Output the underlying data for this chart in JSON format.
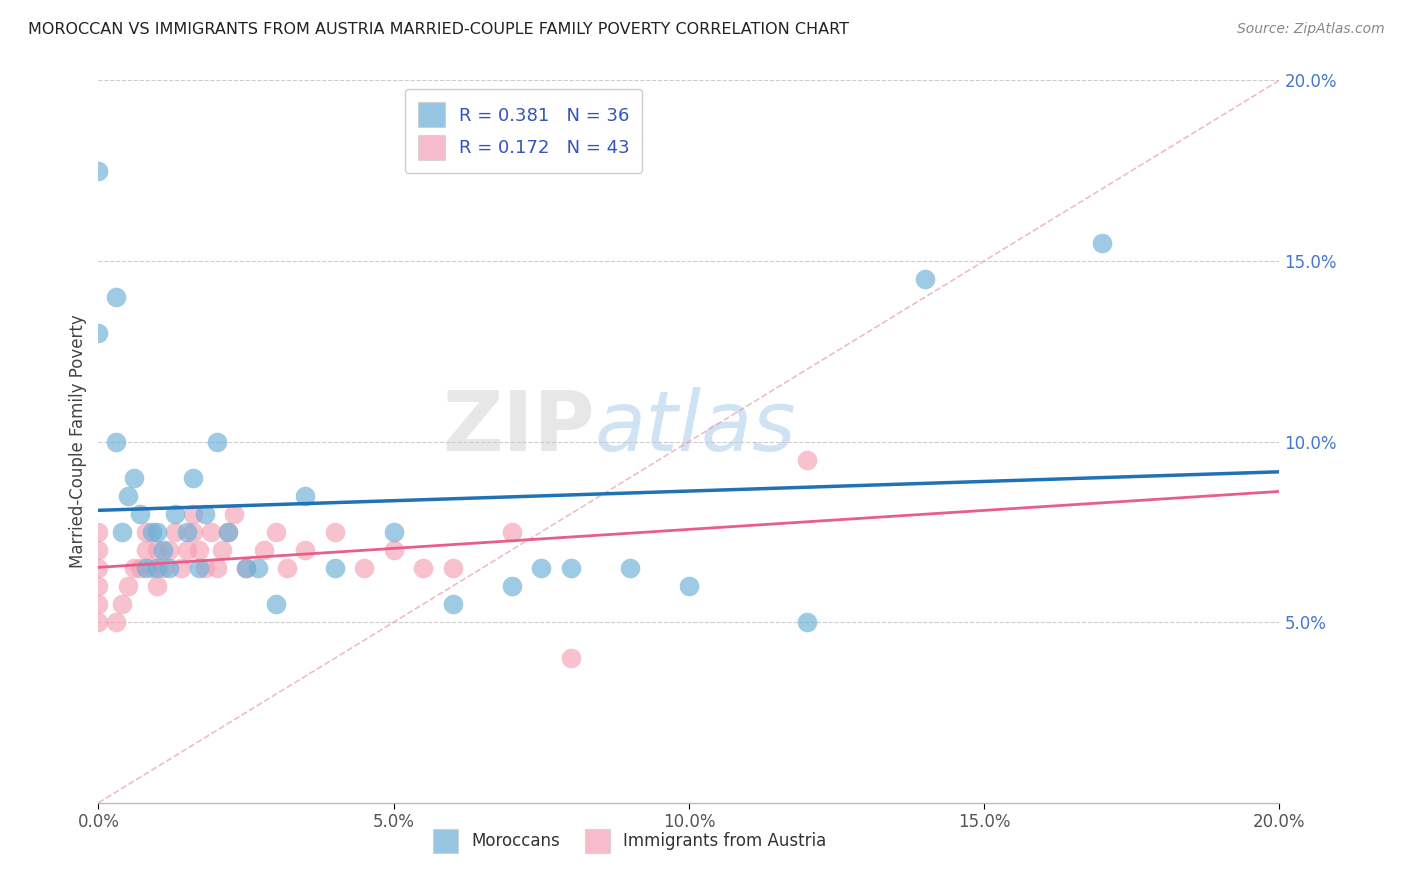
{
  "title": "MOROCCAN VS IMMIGRANTS FROM AUSTRIA MARRIED-COUPLE FAMILY POVERTY CORRELATION CHART",
  "source": "Source: ZipAtlas.com",
  "ylabel": "Married-Couple Family Poverty",
  "xlim": [
    0.0,
    0.2
  ],
  "ylim": [
    0.0,
    0.2
  ],
  "x_ticks": [
    0.0,
    0.05,
    0.1,
    0.15,
    0.2
  ],
  "y_ticks": [
    0.05,
    0.1,
    0.15,
    0.2
  ],
  "x_tick_labels": [
    "0.0%",
    "5.0%",
    "10.0%",
    "15.0%",
    "20.0%"
  ],
  "y_tick_labels": [
    "5.0%",
    "10.0%",
    "15.0%",
    "20.0%"
  ],
  "moroccan_color": "#6baed6",
  "austria_color": "#f4a0b5",
  "moroccan_line_color": "#2171b5",
  "austria_line_color": "#e85d8a",
  "diagonal_color": "#e8b4b8",
  "moroccan_R": 0.381,
  "moroccan_N": 36,
  "austria_R": 0.172,
  "austria_N": 43,
  "legend_label_moroccan": "Moroccans",
  "legend_label_austria": "Immigrants from Austria",
  "watermark_zip": "ZIP",
  "watermark_atlas": "atlas",
  "legend_text_color": "#3355bb",
  "moroccan_x": [
    0.0,
    0.0,
    0.003,
    0.003,
    0.004,
    0.005,
    0.006,
    0.007,
    0.008,
    0.009,
    0.01,
    0.01,
    0.011,
    0.012,
    0.013,
    0.015,
    0.016,
    0.017,
    0.018,
    0.02,
    0.022,
    0.025,
    0.027,
    0.03,
    0.035,
    0.04,
    0.05,
    0.06,
    0.07,
    0.075,
    0.08,
    0.09,
    0.1,
    0.12,
    0.14,
    0.17
  ],
  "moroccan_y": [
    0.175,
    0.13,
    0.14,
    0.1,
    0.075,
    0.085,
    0.09,
    0.08,
    0.065,
    0.075,
    0.065,
    0.075,
    0.07,
    0.065,
    0.08,
    0.075,
    0.09,
    0.065,
    0.08,
    0.1,
    0.075,
    0.065,
    0.065,
    0.055,
    0.085,
    0.065,
    0.075,
    0.055,
    0.06,
    0.065,
    0.065,
    0.065,
    0.06,
    0.05,
    0.145,
    0.155
  ],
  "austria_x": [
    0.0,
    0.0,
    0.0,
    0.0,
    0.0,
    0.0,
    0.003,
    0.004,
    0.005,
    0.006,
    0.007,
    0.008,
    0.008,
    0.009,
    0.01,
    0.01,
    0.011,
    0.012,
    0.013,
    0.014,
    0.015,
    0.016,
    0.016,
    0.017,
    0.018,
    0.019,
    0.02,
    0.021,
    0.022,
    0.023,
    0.025,
    0.028,
    0.03,
    0.032,
    0.035,
    0.04,
    0.045,
    0.05,
    0.055,
    0.06,
    0.07,
    0.08,
    0.12
  ],
  "austria_y": [
    0.05,
    0.055,
    0.06,
    0.065,
    0.07,
    0.075,
    0.05,
    0.055,
    0.06,
    0.065,
    0.065,
    0.07,
    0.075,
    0.065,
    0.06,
    0.07,
    0.065,
    0.07,
    0.075,
    0.065,
    0.07,
    0.075,
    0.08,
    0.07,
    0.065,
    0.075,
    0.065,
    0.07,
    0.075,
    0.08,
    0.065,
    0.07,
    0.075,
    0.065,
    0.07,
    0.075,
    0.065,
    0.07,
    0.065,
    0.065,
    0.075,
    0.04,
    0.095
  ]
}
